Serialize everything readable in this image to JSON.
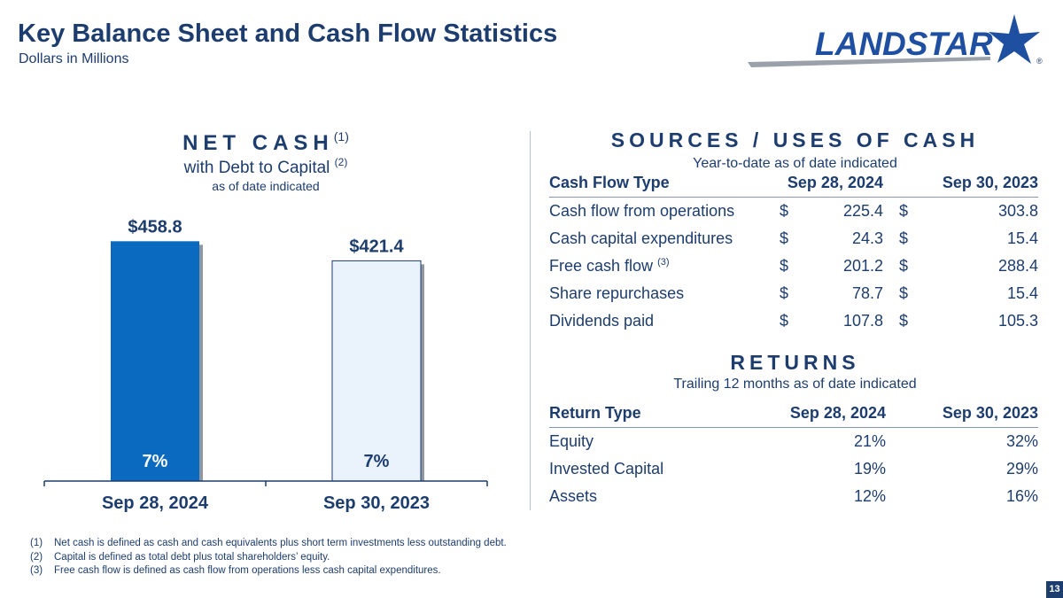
{
  "header": {
    "title": "Key Balance Sheet and Cash Flow Statistics",
    "subtitle": "Dollars in Millions",
    "logo_text": "LANDSTAR",
    "logo_registered": "®"
  },
  "net_cash": {
    "title": "NET CASH",
    "title_note": "(1)",
    "subtitle": "with Debt to Capital",
    "subtitle_note": "(2)",
    "date_note": "as of date indicated"
  },
  "chart_data": {
    "type": "bar",
    "title": "NET CASH with Debt to Capital",
    "categories": [
      "Sep 28, 2024",
      "Sep 30, 2023"
    ],
    "values": [
      458.8,
      421.4
    ],
    "value_labels": [
      "$458.8",
      "$421.4"
    ],
    "debt_to_capital_labels": [
      "7%",
      "7%"
    ],
    "ylim": [
      0,
      500
    ],
    "xlabel": "",
    "ylabel": "",
    "colors": [
      "#0a6abf",
      "#eaf2fc"
    ],
    "stroke_color": "#1d3d6e"
  },
  "sources_uses": {
    "title": "SOURCES / USES OF CASH",
    "note": "Year-to-date as of date indicated",
    "headers": [
      "Cash Flow Type",
      "Sep 28, 2024",
      "Sep 30, 2023"
    ],
    "currency": "$",
    "rows": [
      {
        "label": "Cash flow from operations",
        "note": "",
        "v1": "225.4",
        "v2": "303.8"
      },
      {
        "label": "Cash capital expenditures",
        "note": "",
        "v1": "24.3",
        "v2": "15.4"
      },
      {
        "label": "Free cash flow",
        "note": "(3)",
        "v1": "201.2",
        "v2": "288.4"
      },
      {
        "label": "Share repurchases",
        "note": "",
        "v1": "78.7",
        "v2": "15.4"
      },
      {
        "label": "Dividends paid",
        "note": "",
        "v1": "107.8",
        "v2": "105.3"
      }
    ]
  },
  "returns": {
    "title": "RETURNS",
    "note": "Trailing 12 months as of date indicated",
    "headers": [
      "Return Type",
      "Sep 28, 2024",
      "Sep 30, 2023"
    ],
    "rows": [
      {
        "label": "Equity",
        "v1": "21%",
        "v2": "32%"
      },
      {
        "label": "Invested Capital",
        "v1": "19%",
        "v2": "29%"
      },
      {
        "label": "Assets",
        "v1": "12%",
        "v2": "16%"
      }
    ]
  },
  "footnotes": [
    {
      "num": "(1)",
      "text": "Net cash is defined as cash and cash equivalents plus short term investments less outstanding debt."
    },
    {
      "num": "(2)",
      "text": "Capital is defined as total debt plus total shareholders’ equity."
    },
    {
      "num": "(3)",
      "text": "Free cash flow is defined as cash flow from operations less cash capital expenditures."
    }
  ],
  "page_number": "13"
}
